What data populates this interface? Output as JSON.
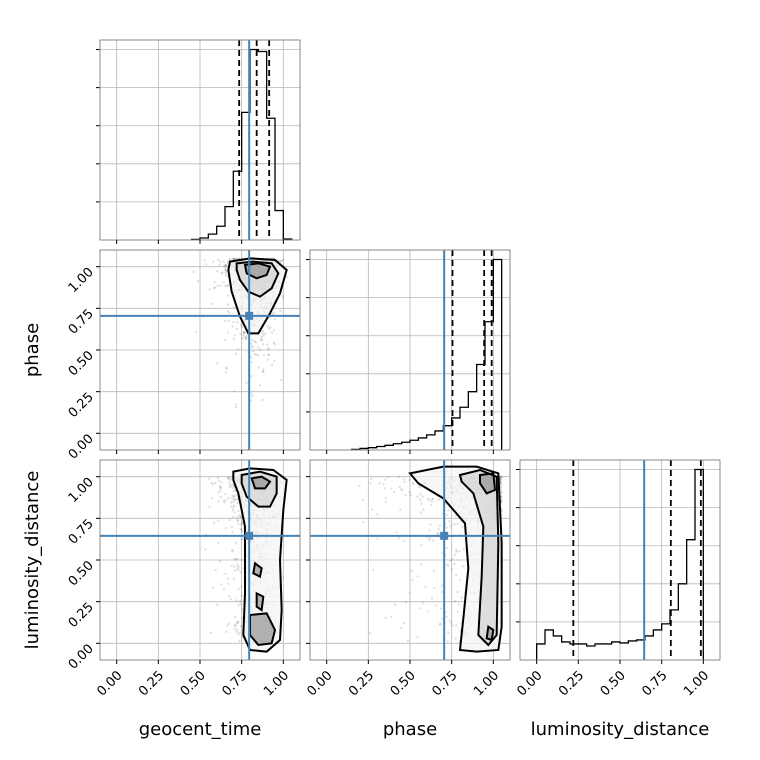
{
  "chart_data": {
    "type": "corner",
    "parameters": [
      "geocent_time",
      "phase",
      "luminosity_distance"
    ],
    "xlabel_geocent_time": "geocent_time",
    "xlabel_phase": "phase",
    "xlabel_luminosity_distance": "luminosity_distance",
    "ylabel_phase": "phase",
    "ylabel_luminosity_distance": "luminosity_distance",
    "range": [
      -0.1,
      1.1
    ],
    "ticks": [
      0.0,
      0.25,
      0.5,
      0.75,
      1.0
    ],
    "tick_labels": [
      "0.00",
      "0.25",
      "0.50",
      "0.75",
      "1.00"
    ],
    "grid": true,
    "truth_color": "#4682b4",
    "truths": {
      "geocent_time": 0.795,
      "phase": 0.705,
      "luminosity_distance": 0.645
    },
    "quantiles": {
      "geocent_time": [
        0.735,
        0.84,
        0.915
      ],
      "phase": [
        0.755,
        0.945,
        0.99
      ],
      "luminosity_distance": [
        0.22,
        0.805,
        0.985
      ]
    },
    "histograms": {
      "geocent_time": {
        "edges": [
          0.45,
          0.5,
          0.55,
          0.6,
          0.65,
          0.7,
          0.75,
          0.8,
          0.85,
          0.9,
          0.95,
          1.0,
          1.05
        ],
        "counts": [
          0.3,
          1,
          3,
          7,
          17,
          35,
          65,
          97,
          96,
          62,
          15,
          0.5
        ]
      },
      "phase": {
        "edges": [
          0.15,
          0.2,
          0.25,
          0.3,
          0.35,
          0.4,
          0.45,
          0.5,
          0.55,
          0.6,
          0.65,
          0.7,
          0.75,
          0.8,
          0.85,
          0.9,
          0.95,
          1.0,
          1.05
        ],
        "counts": [
          0.3,
          0.8,
          1.2,
          1.8,
          2.4,
          3.2,
          4.0,
          5.0,
          6.2,
          7.8,
          9.8,
          12.5,
          16.5,
          22,
          30,
          44,
          66,
          98
        ]
      },
      "luminosity_distance": {
        "edges": [
          0.0,
          0.05,
          0.1,
          0.15,
          0.2,
          0.25,
          0.3,
          0.35,
          0.4,
          0.45,
          0.5,
          0.55,
          0.6,
          0.65,
          0.7,
          0.75,
          0.8,
          0.85,
          0.9,
          0.95,
          1.0
        ],
        "counts": [
          8,
          15,
          12,
          9,
          8,
          8,
          7,
          8,
          8,
          9,
          8.5,
          9.5,
          10,
          12,
          15,
          18,
          25,
          38,
          60,
          95
        ]
      }
    },
    "contours_2d": {
      "geocent_time_vs_phase": [
        [
          [
            0.68,
            1.03
          ],
          [
            0.8,
            1.05
          ],
          [
            0.95,
            1.04
          ],
          [
            1.02,
            0.98
          ],
          [
            0.98,
            0.84
          ],
          [
            0.92,
            0.72
          ],
          [
            0.85,
            0.6
          ],
          [
            0.79,
            0.6
          ],
          [
            0.74,
            0.7
          ],
          [
            0.69,
            0.85
          ],
          [
            0.67,
            0.98
          ]
        ],
        [
          [
            0.72,
            1.02
          ],
          [
            0.82,
            1.03
          ],
          [
            0.93,
            1.02
          ],
          [
            0.97,
            0.96
          ],
          [
            0.93,
            0.87
          ],
          [
            0.86,
            0.82
          ],
          [
            0.79,
            0.85
          ],
          [
            0.74,
            0.92
          ],
          [
            0.72,
            0.98
          ]
        ],
        [
          [
            0.77,
            1.01
          ],
          [
            0.85,
            1.02
          ],
          [
            0.92,
            1.0
          ],
          [
            0.9,
            0.95
          ],
          [
            0.84,
            0.93
          ],
          [
            0.78,
            0.96
          ]
        ]
      ],
      "geocent_time_vs_luminosity_distance": [
        [
          [
            0.7,
            1.03
          ],
          [
            0.8,
            1.05
          ],
          [
            0.94,
            1.04
          ],
          [
            1.02,
            0.98
          ],
          [
            1.0,
            0.8
          ],
          [
            0.98,
            0.5
          ],
          [
            0.99,
            0.2
          ],
          [
            0.98,
            0.02
          ],
          [
            0.9,
            -0.05
          ],
          [
            0.8,
            -0.04
          ],
          [
            0.76,
            0.05
          ],
          [
            0.77,
            0.3
          ],
          [
            0.77,
            0.7
          ],
          [
            0.73,
            0.9
          ],
          [
            0.7,
            0.98
          ]
        ],
        [
          [
            0.75,
            1.01
          ],
          [
            0.86,
            1.03
          ],
          [
            0.96,
            1.0
          ],
          [
            0.96,
            0.9
          ],
          [
            0.92,
            0.82
          ],
          [
            0.85,
            0.82
          ],
          [
            0.78,
            0.88
          ],
          [
            0.75,
            0.96
          ]
        ],
        [
          [
            0.81,
            0.99
          ],
          [
            0.87,
            1.0
          ],
          [
            0.92,
            0.97
          ],
          [
            0.89,
            0.93
          ],
          [
            0.83,
            0.93
          ]
        ],
        [
          [
            0.83,
            0.48
          ],
          [
            0.87,
            0.45
          ],
          [
            0.86,
            0.4
          ],
          [
            0.82,
            0.42
          ]
        ],
        [
          [
            0.84,
            0.3
          ],
          [
            0.88,
            0.28
          ],
          [
            0.87,
            0.2
          ],
          [
            0.84,
            0.22
          ]
        ],
        [
          [
            0.8,
            0.17
          ],
          [
            0.9,
            0.18
          ],
          [
            0.95,
            0.08
          ],
          [
            0.93,
            0.0
          ],
          [
            0.85,
            -0.01
          ],
          [
            0.8,
            0.05
          ]
        ]
      ],
      "phase_vs_luminosity_distance": [
        [
          [
            0.5,
            1.02
          ],
          [
            0.7,
            1.06
          ],
          [
            0.9,
            1.06
          ],
          [
            1.03,
            1.02
          ],
          [
            1.05,
            0.6
          ],
          [
            1.05,
            0.1
          ],
          [
            1.03,
            -0.04
          ],
          [
            0.9,
            -0.05
          ],
          [
            0.8,
            -0.04
          ],
          [
            0.82,
            0.15
          ],
          [
            0.85,
            0.45
          ],
          [
            0.83,
            0.72
          ],
          [
            0.7,
            0.87
          ],
          [
            0.55,
            0.96
          ]
        ],
        [
          [
            0.8,
            1.01
          ],
          [
            0.92,
            1.04
          ],
          [
            1.02,
            1.0
          ],
          [
            1.03,
            0.6
          ],
          [
            1.02,
            0.05
          ],
          [
            0.97,
            -0.01
          ],
          [
            0.91,
            0.05
          ],
          [
            0.93,
            0.4
          ],
          [
            0.94,
            0.7
          ],
          [
            0.88,
            0.9
          ],
          [
            0.81,
            0.97
          ]
        ],
        [
          [
            0.92,
            1.01
          ],
          [
            1.0,
            1.02
          ],
          [
            1.01,
            0.92
          ],
          [
            0.96,
            0.9
          ],
          [
            0.92,
            0.96
          ]
        ],
        [
          [
            0.97,
            0.1
          ],
          [
            1.0,
            0.08
          ],
          [
            0.99,
            0.02
          ],
          [
            0.96,
            0.03
          ]
        ]
      ]
    }
  }
}
